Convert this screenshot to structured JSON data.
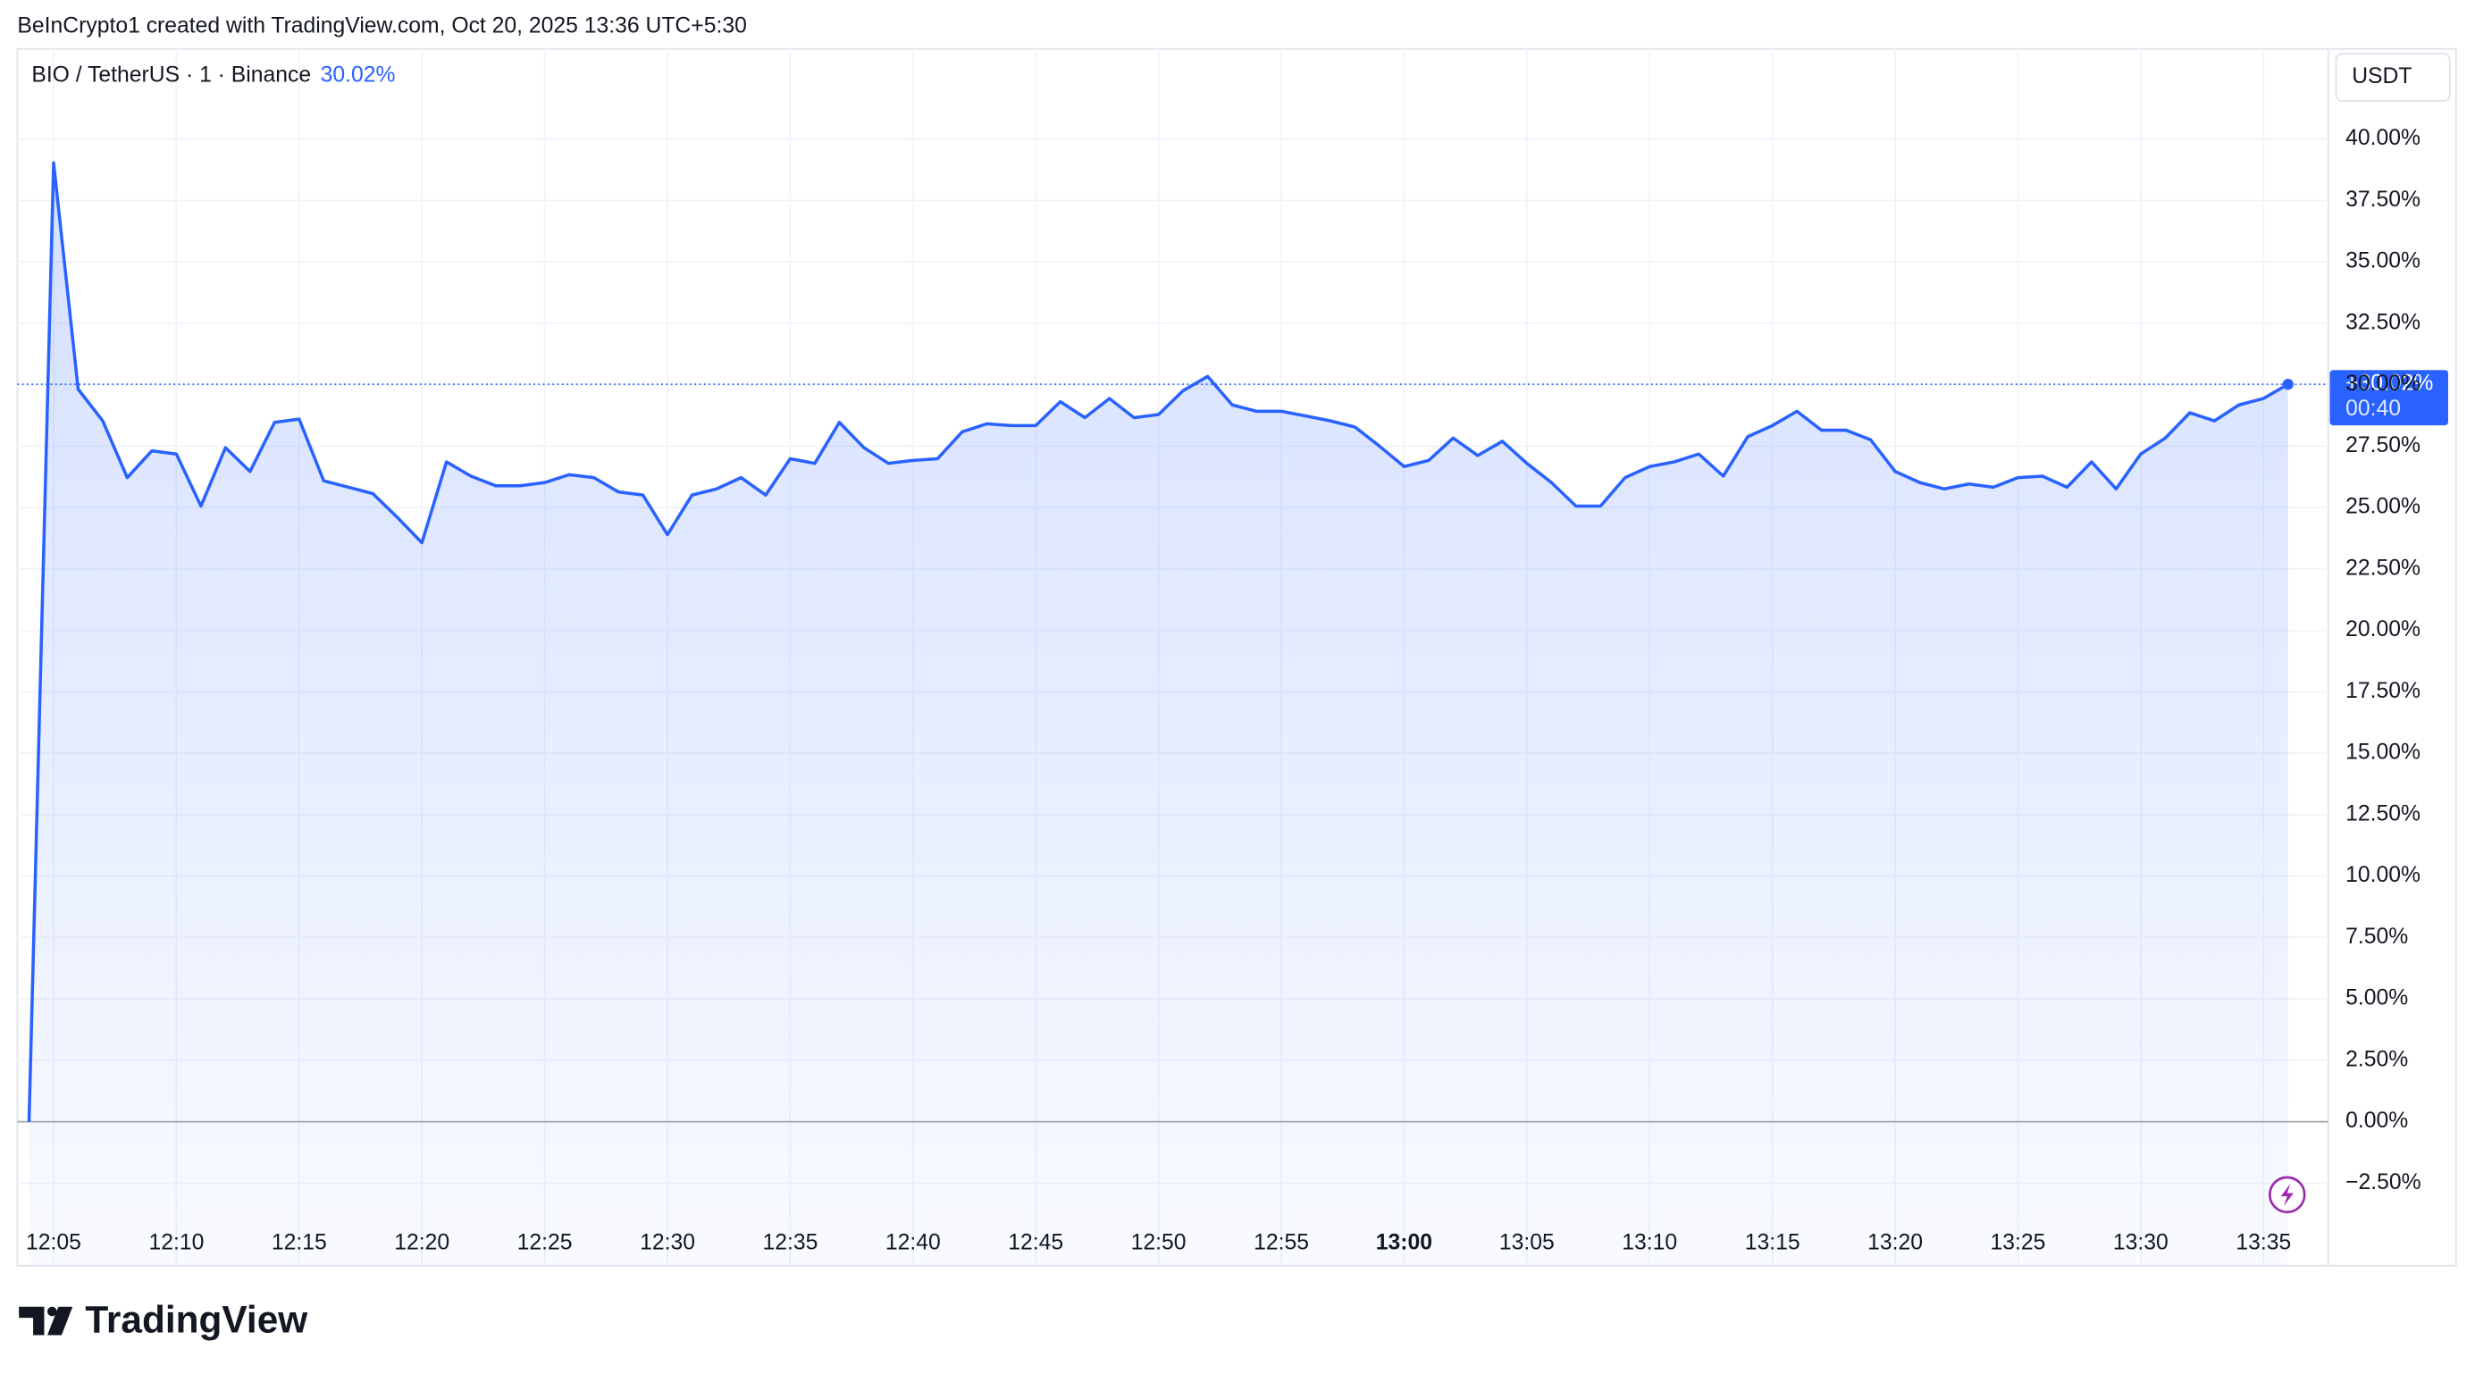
{
  "header": {
    "credit": "BeInCrypto1 created with TradingView.com, Oct 20, 2025 13:36 UTC+5:30"
  },
  "footer": {
    "logo": "TradingView"
  },
  "chart_data": {
    "type": "area",
    "symbol": "BIO / TetherUS · 1 · Binance",
    "legend_change": "30.02%",
    "currency": "USDT",
    "price_tag": "+30.02%",
    "countdown": "00:40",
    "color": "#2962ff",
    "grid": true,
    "categories": [
      null,
      "12:05",
      null,
      null,
      null,
      null,
      "12:10",
      null,
      null,
      null,
      null,
      "12:15",
      null,
      null,
      null,
      null,
      "12:20",
      null,
      null,
      null,
      null,
      "12:25",
      null,
      null,
      null,
      null,
      "12:30",
      null,
      null,
      null,
      null,
      "12:35",
      null,
      null,
      null,
      null,
      "12:40",
      null,
      null,
      null,
      null,
      "12:45",
      null,
      null,
      null,
      null,
      "12:50",
      null,
      null,
      null,
      null,
      "12:55",
      null,
      null,
      null,
      null,
      "13:00",
      null,
      null,
      null,
      null,
      "13:05",
      null,
      null,
      null,
      null,
      "13:10",
      null,
      null,
      null,
      null,
      "13:15",
      null,
      null,
      null,
      null,
      "13:20",
      null,
      null,
      null,
      null,
      "13:25",
      null,
      null,
      null,
      null,
      "13:30",
      null,
      null,
      null,
      null,
      "13:35",
      null
    ],
    "values": [
      0,
      39.03,
      29.82,
      28.53,
      26.22,
      27.31,
      27.18,
      25.06,
      27.44,
      26.47,
      28.47,
      28.6,
      26.09,
      25.83,
      25.57,
      24.6,
      23.57,
      26.86,
      26.28,
      25.89,
      25.89,
      26.02,
      26.34,
      26.22,
      25.64,
      25.51,
      23.9,
      25.51,
      25.76,
      26.22,
      25.51,
      26.99,
      26.8,
      28.47,
      27.44,
      26.8,
      26.92,
      26.99,
      28.08,
      28.41,
      28.34,
      28.34,
      29.31,
      28.66,
      29.44,
      28.66,
      28.79,
      29.76,
      30.34,
      29.18,
      28.92,
      28.92,
      28.73,
      28.53,
      28.28,
      27.5,
      26.67,
      26.92,
      27.83,
      27.12,
      27.7,
      26.8,
      26.02,
      25.06,
      25.06,
      26.22,
      26.67,
      26.86,
      27.18,
      26.28,
      27.89,
      28.34,
      28.92,
      28.15,
      28.15,
      27.76,
      26.47,
      26.02,
      25.76,
      25.96,
      25.83,
      26.22,
      26.28,
      25.83,
      26.86,
      25.76,
      27.18,
      27.83,
      28.86,
      28.53,
      29.18,
      29.44,
      30.02
    ],
    "ylim": [
      -5.86,
      43.67
    ],
    "yticks": [
      {
        "value": -2.5,
        "label": "−2.50%"
      },
      {
        "value": 0,
        "label": "0.00%"
      },
      {
        "value": 2.5,
        "label": "2.50%"
      },
      {
        "value": 5,
        "label": "5.00%"
      },
      {
        "value": 7.5,
        "label": "7.50%"
      },
      {
        "value": 10,
        "label": "10.00%"
      },
      {
        "value": 12.5,
        "label": "12.50%"
      },
      {
        "value": 15,
        "label": "15.00%"
      },
      {
        "value": 17.5,
        "label": "17.50%"
      },
      {
        "value": 20,
        "label": "20.00%"
      },
      {
        "value": 22.5,
        "label": "22.50%"
      },
      {
        "value": 25,
        "label": "25.00%"
      },
      {
        "value": 27.5,
        "label": "27.50%"
      },
      {
        "value": 30,
        "label": "30.00%"
      },
      {
        "value": 32.5,
        "label": "32.50%"
      },
      {
        "value": 35,
        "label": "35.00%"
      },
      {
        "value": 37.5,
        "label": "37.50%"
      },
      {
        "value": 40,
        "label": "40.00%"
      }
    ]
  }
}
